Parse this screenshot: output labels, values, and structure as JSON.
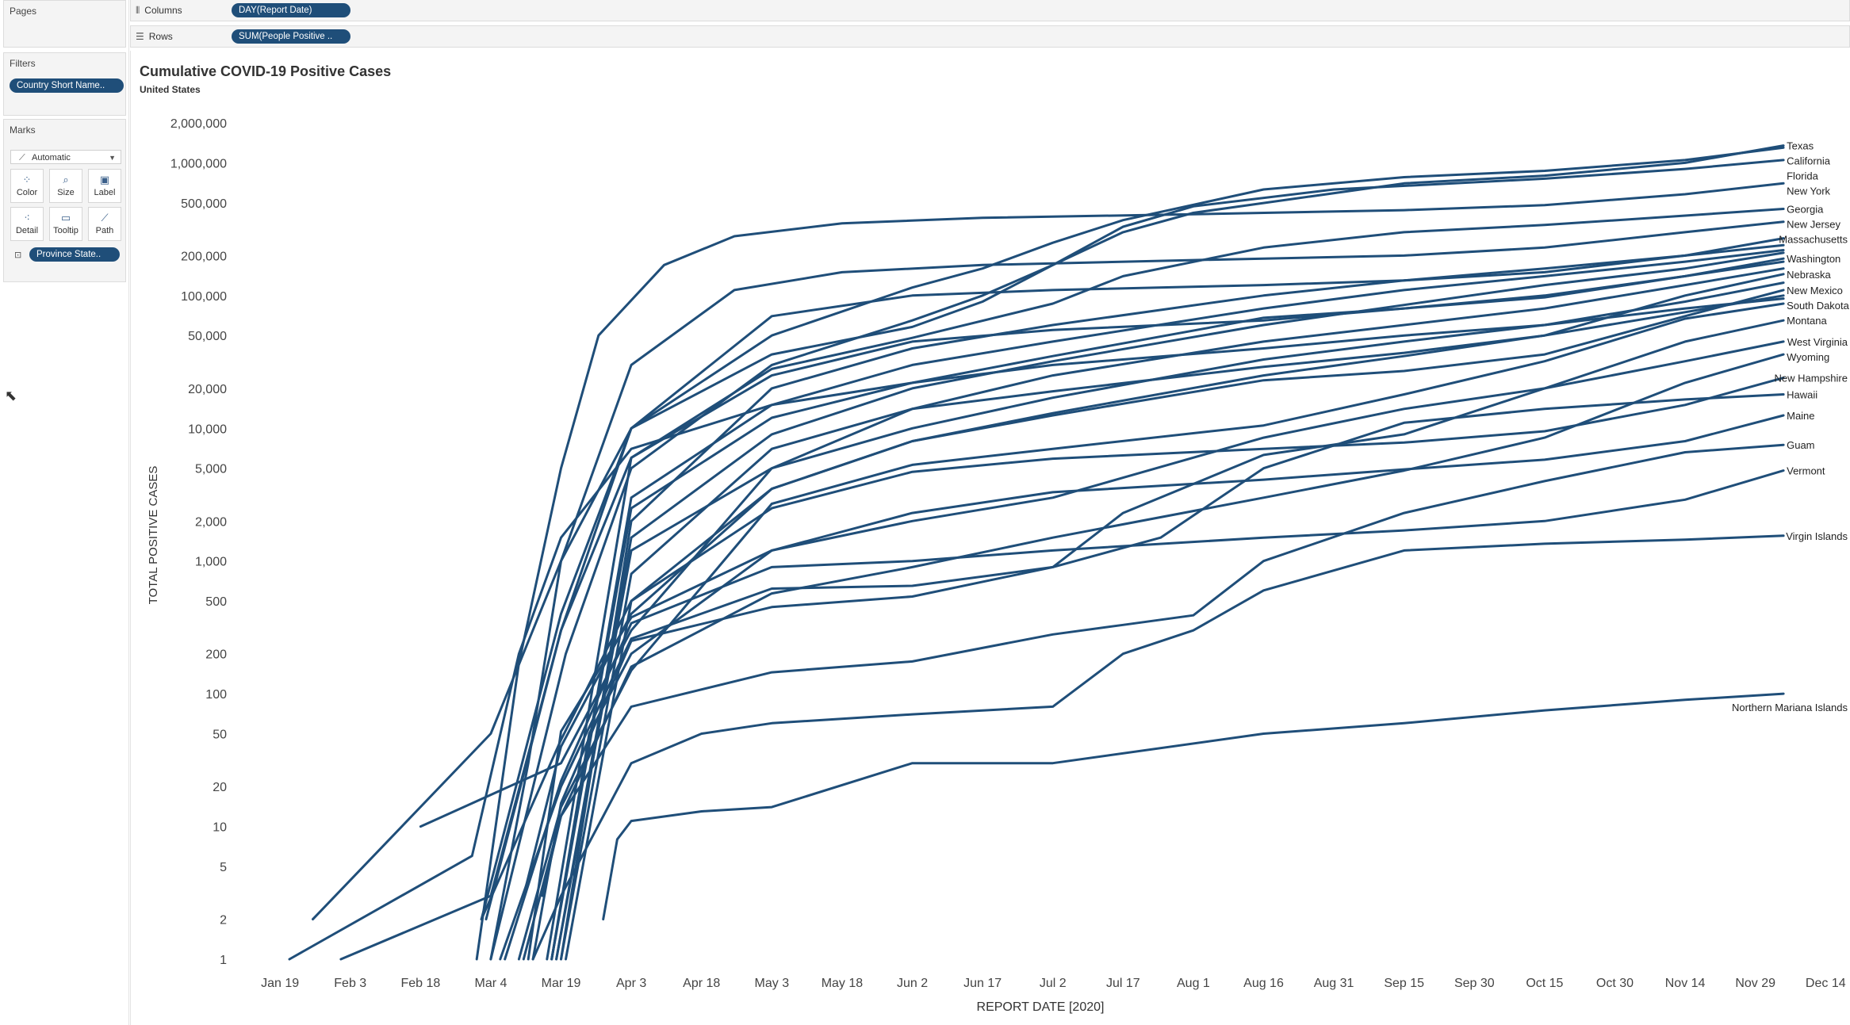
{
  "shelves": {
    "pages_label": "Pages",
    "columns_label": "Columns",
    "columns_pill": "DAY(Report Date)",
    "rows_label": "Rows",
    "rows_pill": "SUM(People Positive .."
  },
  "filters": {
    "title": "Filters",
    "pill": "Country Short Name.."
  },
  "marks": {
    "title": "Marks",
    "type": "Automatic",
    "buttons": {
      "color": "Color",
      "size": "Size",
      "label": "Label",
      "detail": "Detail",
      "tooltip": "Tooltip",
      "path": "Path"
    },
    "detail_pill": "Province State.."
  },
  "colors": {
    "line": "#1f4e79",
    "pill": "#1f4e79"
  },
  "chart_data": {
    "type": "line",
    "title": "Cumulative COVID-19 Positive Cases",
    "subtitle": "United States",
    "xlabel": "REPORT DATE [2020]",
    "ylabel": "TOTAL POSITIVE CASES",
    "yscale": "log",
    "ylim": [
      1,
      2000000
    ],
    "xlim": [
      "2020-01-10",
      "2020-12-17"
    ],
    "x_ticks": [
      "Jan 19",
      "Feb 3",
      "Feb 18",
      "Mar 4",
      "Mar 19",
      "Apr 3",
      "Apr 18",
      "May 3",
      "May 18",
      "Jun 2",
      "Jun 17",
      "Jul 2",
      "Jul 17",
      "Aug 1",
      "Aug 16",
      "Aug 31",
      "Sep 15",
      "Sep 30",
      "Oct 15",
      "Oct 30",
      "Nov 14",
      "Nov 29",
      "Dec 14"
    ],
    "y_ticks": [
      "2,000,000",
      "1,000,000",
      "500,000",
      "200,000",
      "100,000",
      "50,000",
      "20,000",
      "10,000",
      "5,000",
      "2,000",
      "1,000",
      "500",
      "200",
      "100",
      "50",
      "20",
      "10",
      "5",
      "2",
      "1"
    ],
    "grid": false,
    "legend": "none",
    "series": [
      {
        "name": "Texas",
        "x": [
          "2020-03-04",
          "2020-03-20",
          "2020-04-03",
          "2020-05-03",
          "2020-06-02",
          "2020-06-17",
          "2020-07-02",
          "2020-07-17",
          "2020-08-01",
          "2020-09-15",
          "2020-10-15",
          "2020-11-14",
          "2020-12-05"
        ],
        "values": [
          1,
          200,
          5000,
          30000,
          65000,
          100000,
          170000,
          300000,
          420000,
          700000,
          800000,
          1000000,
          1350000
        ]
      },
      {
        "name": "California",
        "x": [
          "2020-01-26",
          "2020-03-04",
          "2020-03-19",
          "2020-04-03",
          "2020-05-03",
          "2020-06-02",
          "2020-06-17",
          "2020-07-02",
          "2020-07-17",
          "2020-08-16",
          "2020-09-15",
          "2020-10-15",
          "2020-11-14",
          "2020-12-05"
        ],
        "values": [
          2,
          50,
          1000,
          10000,
          50000,
          115000,
          160000,
          250000,
          370000,
          630000,
          780000,
          870000,
          1050000,
          1300000
        ]
      },
      {
        "name": "Florida",
        "x": [
          "2020-03-02",
          "2020-03-19",
          "2020-04-03",
          "2020-05-03",
          "2020-06-02",
          "2020-06-17",
          "2020-07-02",
          "2020-07-17",
          "2020-08-01",
          "2020-08-31",
          "2020-10-15",
          "2020-11-14",
          "2020-12-05"
        ],
        "values": [
          2,
          400,
          10000,
          36000,
          58000,
          90000,
          170000,
          330000,
          470000,
          630000,
          760000,
          900000,
          1050000
        ]
      },
      {
        "name": "New York",
        "x": [
          "2020-03-01",
          "2020-03-10",
          "2020-03-19",
          "2020-03-27",
          "2020-04-10",
          "2020-04-25",
          "2020-05-18",
          "2020-06-17",
          "2020-08-01",
          "2020-09-15",
          "2020-10-15",
          "2020-11-14",
          "2020-12-05"
        ],
        "values": [
          1,
          170,
          5000,
          50000,
          170000,
          280000,
          350000,
          385000,
          410000,
          440000,
          480000,
          580000,
          700000
        ]
      },
      {
        "name": "Georgia",
        "x": [
          "2020-03-03",
          "2020-03-19",
          "2020-04-03",
          "2020-05-03",
          "2020-06-02",
          "2020-07-02",
          "2020-07-17",
          "2020-08-16",
          "2020-09-15",
          "2020-10-15",
          "2020-11-14",
          "2020-12-05"
        ],
        "values": [
          2,
          300,
          6000,
          28000,
          48000,
          87000,
          140000,
          230000,
          300000,
          340000,
          400000,
          450000
        ]
      },
      {
        "name": "New Jersey",
        "x": [
          "2020-03-04",
          "2020-03-12",
          "2020-03-19",
          "2020-04-03",
          "2020-04-25",
          "2020-05-18",
          "2020-06-17",
          "2020-08-01",
          "2020-09-15",
          "2020-10-15",
          "2020-11-14",
          "2020-12-05"
        ],
        "values": [
          1,
          30,
          1000,
          30000,
          110000,
          150000,
          170000,
          185000,
          200000,
          230000,
          300000,
          360000
        ]
      },
      {
        "name": "Massachusetts",
        "x": [
          "2020-02-01",
          "2020-03-04",
          "2020-03-19",
          "2020-04-03",
          "2020-05-03",
          "2020-06-02",
          "2020-07-02",
          "2020-08-16",
          "2020-09-15",
          "2020-10-15",
          "2020-11-14",
          "2020-12-05"
        ],
        "values": [
          1,
          3,
          300,
          10000,
          70000,
          100000,
          110000,
          120000,
          130000,
          150000,
          200000,
          270000
        ]
      },
      {
        "name": "Washington",
        "x": [
          "2020-01-21",
          "2020-02-29",
          "2020-03-10",
          "2020-03-19",
          "2020-04-03",
          "2020-05-03",
          "2020-06-02",
          "2020-07-02",
          "2020-08-16",
          "2020-09-15",
          "2020-10-15",
          "2020-11-14",
          "2020-12-05"
        ],
        "values": [
          1,
          6,
          200,
          1500,
          7000,
          15000,
          22000,
          35000,
          68000,
          80000,
          97000,
          140000,
          190000
        ]
      },
      {
        "name": "Nebraska",
        "x": [
          "2020-02-18",
          "2020-03-19",
          "2020-04-03",
          "2020-05-03",
          "2020-06-02",
          "2020-07-02",
          "2020-08-16",
          "2020-09-15",
          "2020-10-15",
          "2020-11-14",
          "2020-12-05"
        ],
        "values": [
          10,
          30,
          300,
          5000,
          14000,
          19000,
          29000,
          37000,
          50000,
          100000,
          145000
        ]
      },
      {
        "name": "New Mexico",
        "x": [
          "2020-03-11",
          "2020-03-19",
          "2020-04-03",
          "2020-05-03",
          "2020-06-02",
          "2020-07-02",
          "2020-08-16",
          "2020-09-15",
          "2020-10-15",
          "2020-11-14",
          "2020-12-05"
        ],
        "values": [
          3,
          40,
          400,
          3500,
          8000,
          12500,
          23000,
          27000,
          36000,
          70000,
          110000
        ]
      },
      {
        "name": "South Dakota",
        "x": [
          "2020-03-10",
          "2020-03-19",
          "2020-04-03",
          "2020-05-03",
          "2020-06-02",
          "2020-07-02",
          "2020-08-16",
          "2020-09-15",
          "2020-10-15",
          "2020-11-14",
          "2020-12-05"
        ],
        "values": [
          1,
          14,
          150,
          2700,
          5300,
          7000,
          10500,
          18000,
          32000,
          67000,
          87000
        ]
      },
      {
        "name": "Montana",
        "x": [
          "2020-03-13",
          "2020-03-19",
          "2020-04-03",
          "2020-05-03",
          "2020-06-02",
          "2020-07-02",
          "2020-07-17",
          "2020-08-16",
          "2020-09-15",
          "2020-10-15",
          "2020-11-14",
          "2020-12-05"
        ],
        "values": [
          1,
          15,
          250,
          450,
          540,
          900,
          2300,
          6300,
          9000,
          20000,
          45000,
          65000
        ]
      },
      {
        "name": "West Virginia",
        "x": [
          "2020-03-17",
          "2020-03-25",
          "2020-04-03",
          "2020-05-03",
          "2020-06-02",
          "2020-07-02",
          "2020-08-16",
          "2020-09-15",
          "2020-10-15",
          "2020-11-14",
          "2020-12-05"
        ],
        "values": [
          1,
          50,
          200,
          1200,
          2000,
          3000,
          8500,
          14000,
          20000,
          32000,
          45000
        ]
      },
      {
        "name": "Wyoming",
        "x": [
          "2020-03-11",
          "2020-03-19",
          "2020-04-03",
          "2020-05-03",
          "2020-06-02",
          "2020-07-02",
          "2020-08-16",
          "2020-09-15",
          "2020-10-15",
          "2020-11-14",
          "2020-12-05"
        ],
        "values": [
          1,
          12,
          160,
          570,
          900,
          1500,
          3000,
          4800,
          8500,
          22000,
          36000
        ]
      },
      {
        "name": "New Hampshire",
        "x": [
          "2020-03-02",
          "2020-03-19",
          "2020-04-03",
          "2020-05-03",
          "2020-06-02",
          "2020-07-02",
          "2020-08-16",
          "2020-09-15",
          "2020-10-15",
          "2020-11-14",
          "2020-12-05"
        ],
        "values": [
          2,
          45,
          500,
          2500,
          4700,
          5900,
          7000,
          7800,
          9500,
          15000,
          24000
        ]
      },
      {
        "name": "Hawaii",
        "x": [
          "2020-03-06",
          "2020-03-19",
          "2020-04-03",
          "2020-05-03",
          "2020-06-02",
          "2020-07-02",
          "2020-07-25",
          "2020-08-16",
          "2020-09-15",
          "2020-10-15",
          "2020-11-14",
          "2020-12-05"
        ],
        "values": [
          1,
          20,
          260,
          620,
          650,
          900,
          1500,
          5000,
          11000,
          14000,
          16500,
          18000
        ]
      },
      {
        "name": "Maine",
        "x": [
          "2020-03-12",
          "2020-03-19",
          "2020-04-03",
          "2020-05-03",
          "2020-06-02",
          "2020-07-02",
          "2020-08-16",
          "2020-09-15",
          "2020-10-15",
          "2020-11-14",
          "2020-12-05"
        ],
        "values": [
          1,
          52,
          376,
          1200,
          2300,
          3300,
          4100,
          4900,
          5800,
          8000,
          12500
        ]
      },
      {
        "name": "Guam",
        "x": [
          "2020-03-15",
          "2020-03-19",
          "2020-04-03",
          "2020-05-03",
          "2020-06-02",
          "2020-07-02",
          "2020-07-17",
          "2020-08-01",
          "2020-08-16",
          "2020-09-15",
          "2020-10-15",
          "2020-11-14",
          "2020-12-05"
        ],
        "values": [
          3,
          12,
          80,
          145,
          175,
          280,
          330,
          390,
          1000,
          2300,
          4000,
          6600,
          7500
        ]
      },
      {
        "name": "Vermont",
        "x": [
          "2020-03-07",
          "2020-03-19",
          "2020-04-03",
          "2020-05-03",
          "2020-06-02",
          "2020-07-02",
          "2020-08-16",
          "2020-09-15",
          "2020-10-15",
          "2020-11-14",
          "2020-12-05"
        ],
        "values": [
          1,
          22,
          340,
          900,
          1000,
          1200,
          1500,
          1700,
          2000,
          2900,
          4800
        ]
      },
      {
        "name": "Virgin Islands",
        "x": [
          "2020-03-13",
          "2020-03-19",
          "2020-04-03",
          "2020-04-18",
          "2020-05-03",
          "2020-06-02",
          "2020-07-02",
          "2020-07-17",
          "2020-08-01",
          "2020-08-16",
          "2020-09-15",
          "2020-10-15",
          "2020-11-14",
          "2020-12-05"
        ],
        "values": [
          1,
          3,
          30,
          50,
          60,
          70,
          80,
          200,
          300,
          600,
          1200,
          1350,
          1450,
          1550
        ]
      },
      {
        "name": "Northern Mariana Islands",
        "x": [
          "2020-03-28",
          "2020-03-31",
          "2020-04-03",
          "2020-04-18",
          "2020-05-03",
          "2020-06-02",
          "2020-07-02",
          "2020-08-16",
          "2020-09-15",
          "2020-10-15",
          "2020-11-14",
          "2020-12-05"
        ],
        "values": [
          2,
          8,
          11,
          13,
          14,
          30,
          30,
          50,
          60,
          75,
          90,
          100
        ]
      },
      {
        "name": "",
        "x": [
          "2020-03-19",
          "2020-04-03",
          "2020-05-03",
          "2020-06-02",
          "2020-07-02",
          "2020-08-16",
          "2020-09-15",
          "2020-10-15",
          "2020-11-14",
          "2020-12-05"
        ],
        "values": [
          1,
          2000,
          20000,
          40000,
          60000,
          100000,
          130000,
          160000,
          200000,
          240000
        ]
      },
      {
        "name": "",
        "x": [
          "2020-03-17",
          "2020-04-03",
          "2020-05-03",
          "2020-06-02",
          "2020-07-02",
          "2020-08-16",
          "2020-09-15",
          "2020-10-15",
          "2020-11-14",
          "2020-12-05"
        ],
        "values": [
          1,
          3000,
          15000,
          30000,
          45000,
          80000,
          110000,
          140000,
          180000,
          220000
        ]
      },
      {
        "name": "",
        "x": [
          "2020-03-18",
          "2020-04-03",
          "2020-05-03",
          "2020-06-02",
          "2020-07-02",
          "2020-08-16",
          "2020-09-15",
          "2020-10-15",
          "2020-11-14",
          "2020-12-05"
        ],
        "values": [
          1,
          1500,
          9000,
          20000,
          32000,
          60000,
          85000,
          120000,
          160000,
          210000
        ]
      },
      {
        "name": "",
        "x": [
          "2020-03-16",
          "2020-04-03",
          "2020-05-03",
          "2020-06-02",
          "2020-07-02",
          "2020-08-16",
          "2020-09-15",
          "2020-10-15",
          "2020-11-14",
          "2020-12-05"
        ],
        "values": [
          1,
          6000,
          25000,
          45000,
          55000,
          65000,
          80000,
          100000,
          140000,
          180000
        ]
      },
      {
        "name": "",
        "x": [
          "2020-03-19",
          "2020-04-03",
          "2020-05-03",
          "2020-06-02",
          "2020-07-02",
          "2020-08-16",
          "2020-09-15",
          "2020-10-15",
          "2020-11-14",
          "2020-12-05"
        ],
        "values": [
          1,
          800,
          7000,
          14000,
          25000,
          45000,
          60000,
          80000,
          120000,
          160000
        ]
      },
      {
        "name": "",
        "x": [
          "2020-03-18",
          "2020-04-03",
          "2020-05-03",
          "2020-06-02",
          "2020-07-02",
          "2020-08-16",
          "2020-09-15",
          "2020-10-15",
          "2020-11-14",
          "2020-12-05"
        ],
        "values": [
          1,
          1200,
          5000,
          10000,
          17000,
          33000,
          45000,
          60000,
          90000,
          125000
        ]
      },
      {
        "name": "",
        "x": [
          "2020-03-20",
          "2020-04-03",
          "2020-05-03",
          "2020-06-02",
          "2020-07-02",
          "2020-08-16",
          "2020-09-15",
          "2020-10-15",
          "2020-11-14",
          "2020-12-05"
        ],
        "values": [
          1,
          500,
          3500,
          8000,
          13000,
          25000,
          35000,
          50000,
          75000,
          100000
        ]
      },
      {
        "name": "",
        "x": [
          "2020-03-17",
          "2020-04-03",
          "2020-05-03",
          "2020-06-02",
          "2020-07-02",
          "2020-08-16",
          "2020-09-15",
          "2020-10-15",
          "2020-11-14",
          "2020-12-05"
        ],
        "values": [
          1,
          2500,
          12000,
          22000,
          30000,
          40000,
          50000,
          60000,
          80000,
          95000
        ]
      }
    ]
  }
}
